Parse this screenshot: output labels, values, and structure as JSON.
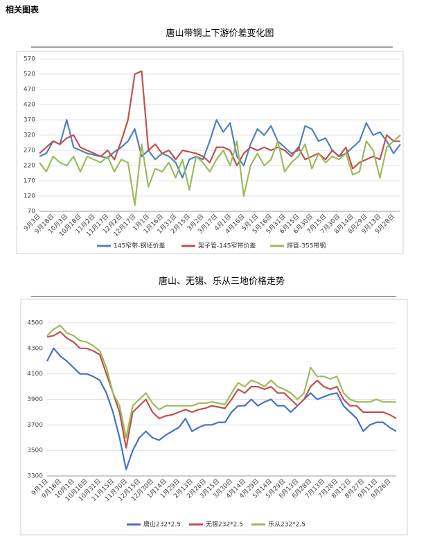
{
  "header": {
    "title": "相关图表"
  },
  "chart_data": [
    {
      "type": "line",
      "title": "唐山带钢上下游价差变化图",
      "categories": [
        "9月3日",
        null,
        "9月18日",
        null,
        "10月3日",
        null,
        "10月18日",
        null,
        "11月2日",
        null,
        "11月17日",
        null,
        "12月2日",
        null,
        "12月17日",
        null,
        "1月1日",
        null,
        "1月16日",
        null,
        "1月31日",
        null,
        "2月15日",
        null,
        "3月2日",
        null,
        "3月17日",
        null,
        "4月1日",
        null,
        "4月16日",
        null,
        "5月1日",
        null,
        "5月16日",
        null,
        "5月31日",
        null,
        "6月15日",
        null,
        "6月30日",
        null,
        "7月15日",
        null,
        "7月30日",
        null,
        "8月14日",
        null,
        "8月29日",
        null,
        "9月13日",
        null,
        "9月28日",
        null
      ],
      "ylim": [
        70,
        570
      ],
      "yticks": [
        70,
        120,
        170,
        220,
        270,
        320,
        370,
        420,
        470,
        520,
        570
      ],
      "grid": true,
      "series": [
        {
          "name": "145窄带-钢坯价差",
          "color": "#4f81bd",
          "values": [
            250,
            260,
            300,
            290,
            370,
            280,
            270,
            260,
            255,
            250,
            245,
            265,
            280,
            300,
            340,
            250,
            270,
            240,
            260,
            250,
            230,
            180,
            240,
            250,
            240,
            300,
            370,
            330,
            360,
            250,
            220,
            290,
            340,
            320,
            350,
            300,
            280,
            260,
            270,
            350,
            340,
            300,
            310,
            270,
            250,
            260,
            280,
            300,
            360,
            320,
            330,
            300,
            260,
            290
          ]
        },
        {
          "name": "架子管-145窄带价差",
          "color": "#c0504d",
          "values": [
            260,
            280,
            300,
            290,
            310,
            320,
            280,
            270,
            260,
            250,
            270,
            240,
            300,
            370,
            520,
            530,
            270,
            290,
            260,
            270,
            240,
            270,
            265,
            260,
            250,
            230,
            280,
            280,
            270,
            220,
            260,
            280,
            270,
            280,
            270,
            280,
            270,
            250,
            280,
            240,
            250,
            260,
            240,
            270,
            250,
            280,
            210,
            230,
            240,
            250,
            240,
            320,
            300,
            300
          ]
        },
        {
          "name": "焊管-355带钢",
          "color": "#9bbb59",
          "values": [
            230,
            200,
            250,
            230,
            220,
            250,
            200,
            250,
            240,
            230,
            250,
            200,
            240,
            230,
            90,
            290,
            150,
            210,
            200,
            230,
            180,
            240,
            140,
            250,
            230,
            200,
            240,
            270,
            220,
            300,
            120,
            220,
            260,
            220,
            240,
            300,
            200,
            230,
            250,
            290,
            210,
            260,
            230,
            250,
            240,
            260,
            190,
            200,
            300,
            270,
            180,
            280,
            300,
            320
          ]
        }
      ]
    },
    {
      "type": "line",
      "title": "唐山、无锡、乐从三地价格走势",
      "categories": [
        "9月1日",
        null,
        "9月16日",
        null,
        "10月1日",
        null,
        "10月16日",
        null,
        "10月31日",
        null,
        "11月15日",
        null,
        "11月30日",
        null,
        "12月15日",
        null,
        "12月30日",
        null,
        "1月14日",
        null,
        "1月29日",
        null,
        "2月13日",
        null,
        "2月28日",
        null,
        "3月15日",
        null,
        "3月30日",
        null,
        "4月14日",
        null,
        "4月29日",
        null,
        "5月14日",
        null,
        "5月29日",
        null,
        "6月13日",
        null,
        "6月28日",
        null,
        "7月13日",
        null,
        "7月28日",
        null,
        "8月12日",
        null,
        "8月27日",
        null,
        "9月11日",
        null,
        "9月26日",
        null
      ],
      "ylim": [
        3300,
        4500
      ],
      "yticks": [
        3300,
        3500,
        3700,
        3900,
        4100,
        4300,
        4500
      ],
      "grid": true,
      "series": [
        {
          "name": "唐山232*2.5",
          "color": "#4472c4",
          "values": [
            4200,
            4300,
            4240,
            4200,
            4150,
            4100,
            4100,
            4080,
            4050,
            3950,
            3800,
            3600,
            3350,
            3500,
            3600,
            3650,
            3600,
            3580,
            3620,
            3650,
            3680,
            3750,
            3650,
            3680,
            3700,
            3700,
            3720,
            3720,
            3800,
            3850,
            3850,
            3900,
            3850,
            3880,
            3900,
            3850,
            3850,
            3800,
            3850,
            3900,
            3950,
            3900,
            3920,
            3940,
            3950,
            3850,
            3800,
            3750,
            3650,
            3700,
            3720,
            3720,
            3680,
            3650
          ]
        },
        {
          "name": "无锡232*2.5",
          "color": "#c0504d",
          "values": [
            4390,
            4400,
            4430,
            4380,
            4350,
            4300,
            4300,
            4280,
            4250,
            4100,
            3950,
            3800,
            3520,
            3800,
            3850,
            3900,
            3800,
            3750,
            3770,
            3780,
            3800,
            3820,
            3800,
            3820,
            3830,
            3850,
            3840,
            3830,
            3900,
            3980,
            3950,
            4000,
            4000,
            3980,
            4000,
            3950,
            3950,
            3900,
            3850,
            3900,
            4000,
            4050,
            4000,
            3980,
            4000,
            3900,
            3850,
            3850,
            3800,
            3800,
            3800,
            3800,
            3780,
            3750
          ]
        },
        {
          "name": "乐从232*2.5",
          "color": "#9bbb59",
          "values": [
            4400,
            4450,
            4480,
            4420,
            4400,
            4360,
            4350,
            4320,
            4280,
            4150,
            3950,
            3850,
            3600,
            3850,
            3900,
            3950,
            3870,
            3820,
            3850,
            3850,
            3850,
            3850,
            3850,
            3870,
            3870,
            3880,
            3870,
            3860,
            3950,
            4030,
            4000,
            4050,
            4030,
            4000,
            4050,
            4000,
            3980,
            3950,
            3900,
            3950,
            4150,
            4080,
            4080,
            4060,
            4080,
            3950,
            3900,
            3880,
            3880,
            3880,
            3900,
            3880,
            3880,
            3880
          ]
        }
      ]
    }
  ]
}
